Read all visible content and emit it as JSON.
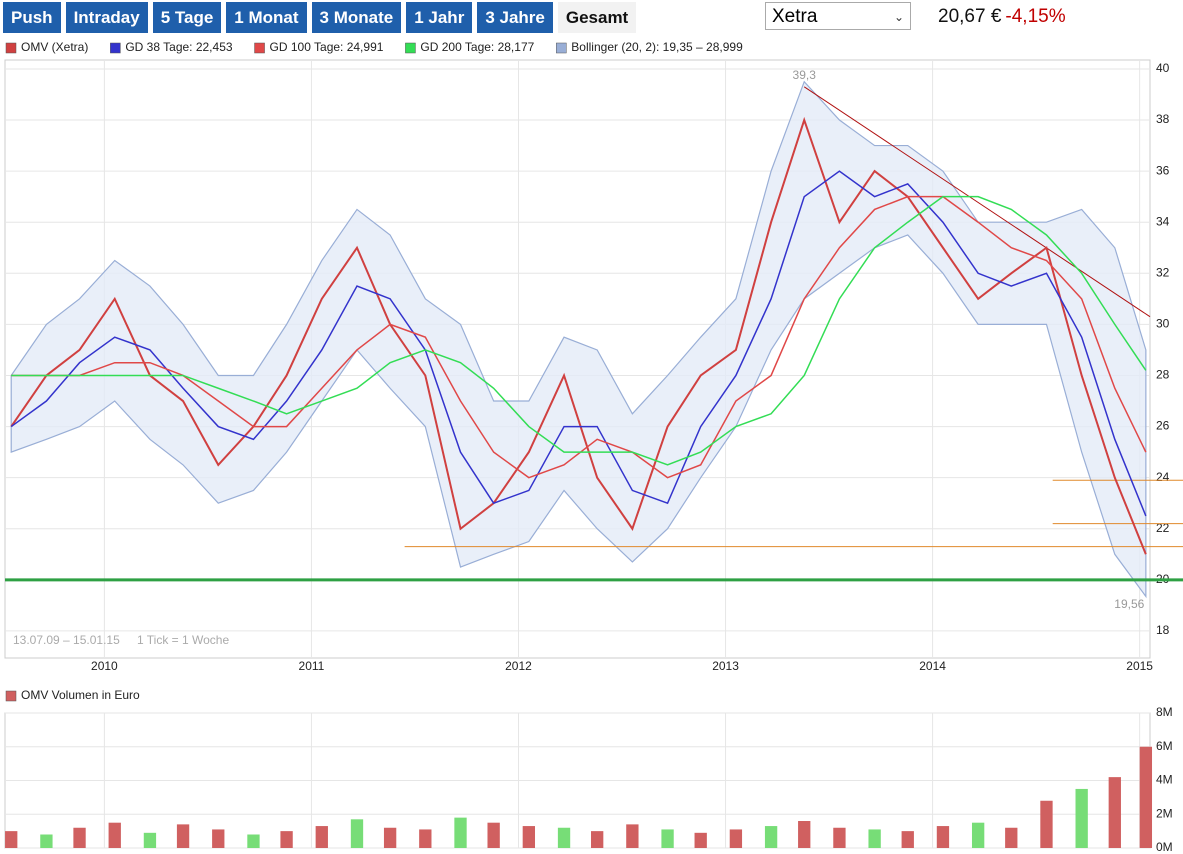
{
  "header": {
    "tabs": [
      "Push",
      "Intraday",
      "5 Tage",
      "1 Monat",
      "3 Monate",
      "1 Jahr",
      "3 Jahre",
      "Gesamt"
    ],
    "selected_tab": 7,
    "exchange": "Xetra",
    "price": "20,67 €",
    "change": "-4,15%"
  },
  "chart_data": [
    {
      "type": "line",
      "legend": true,
      "x": [
        2009.55,
        2009.72,
        2009.88,
        2010.05,
        2010.22,
        2010.38,
        2010.55,
        2010.72,
        2010.88,
        2011.05,
        2011.22,
        2011.38,
        2011.55,
        2011.72,
        2011.88,
        2012.05,
        2012.22,
        2012.38,
        2012.55,
        2012.72,
        2012.88,
        2013.05,
        2013.22,
        2013.38,
        2013.55,
        2013.72,
        2013.88,
        2014.05,
        2014.22,
        2014.38,
        2014.55,
        2014.72,
        2014.88,
        2015.03
      ],
      "series": [
        {
          "name": "OMV (Xetra)",
          "color": "#d04040",
          "values": [
            26,
            28,
            29,
            31,
            28,
            27,
            24.5,
            26,
            28,
            31,
            33,
            30,
            28,
            22,
            23,
            25,
            28,
            24,
            22,
            26,
            28,
            29,
            34,
            38,
            34,
            36,
            35,
            33,
            31,
            32,
            33,
            28,
            24,
            21
          ]
        },
        {
          "name": "GD 38 Tage: 22,453",
          "color": "#3333cc",
          "values": [
            26,
            27,
            28.5,
            29.5,
            29,
            27.5,
            26,
            25.5,
            27,
            29,
            31.5,
            31,
            29,
            25,
            23,
            23.5,
            26,
            26,
            23.5,
            23,
            26,
            28,
            31,
            35,
            36,
            35,
            35.5,
            34,
            32,
            31.5,
            32,
            29.5,
            25.5,
            22.5
          ]
        },
        {
          "name": "GD 100 Tage: 24,991",
          "color": "#e04848",
          "values": [
            28,
            28,
            28,
            28.5,
            28.5,
            28,
            27,
            26,
            26,
            27.5,
            29,
            30,
            29.5,
            27,
            25,
            24,
            24.5,
            25.5,
            25,
            24,
            24.5,
            27,
            28,
            31,
            33,
            34.5,
            35,
            35,
            34,
            33,
            32.5,
            31,
            27.5,
            25
          ]
        },
        {
          "name": "GD 200 Tage: 28,177",
          "color": "#33dd55",
          "values": [
            28,
            28,
            28,
            28,
            28,
            28,
            27.5,
            27,
            26.5,
            27,
            27.5,
            28.5,
            29,
            28.5,
            27.5,
            26,
            25,
            25,
            25,
            24.5,
            25,
            26,
            26.5,
            28,
            31,
            33,
            34,
            35,
            35,
            34.5,
            33.5,
            32,
            30,
            28.2
          ]
        }
      ],
      "band": {
        "name": "Bollinger (20, 2): 19,35 – 28,999",
        "color": "#99aed6",
        "upper": [
          28,
          30,
          31,
          32.5,
          31.5,
          30,
          28,
          28,
          30,
          32.5,
          34.5,
          33.5,
          31,
          30,
          27,
          27,
          29.5,
          29,
          26.5,
          28,
          29.5,
          31,
          36,
          39.5,
          38,
          37,
          37,
          36,
          34,
          34,
          34,
          34.5,
          33,
          29
        ],
        "lower": [
          25,
          25.5,
          26,
          27,
          25.5,
          24.5,
          23,
          23.5,
          25,
          27,
          29,
          27.5,
          26,
          20.5,
          21,
          21.5,
          23.5,
          22,
          20.7,
          22,
          24,
          26,
          29,
          31,
          32,
          33,
          33.5,
          32,
          30,
          30,
          30,
          25,
          21,
          19.35
        ]
      },
      "hlines": [
        {
          "value": 20,
          "color": "#2ea043",
          "from": 2009.52
        },
        {
          "value": 21.3,
          "color": "#e08a2c",
          "from": 2011.45
        },
        {
          "value": 22.2,
          "color": "#e08a2c",
          "from": 2014.58
        },
        {
          "value": 23.9,
          "color": "#e08a2c",
          "from": 2014.58
        }
      ],
      "trendlines": [
        {
          "x": [
            2013.38,
            2015.05
          ],
          "y": [
            39.3,
            30.3
          ],
          "color": "#b01010"
        }
      ],
      "annotations": [
        {
          "label": "39,3",
          "value": 39.3,
          "x": 2013.38
        },
        {
          "label": "19,56",
          "value": 19.56,
          "x": 2014.95
        }
      ],
      "notes": [
        "13.07.09 – 15.01.15",
        "1 Tick = 1 Woche"
      ],
      "xlim": [
        2009.52,
        2015.05
      ],
      "xticks": [
        2010,
        2011,
        2012,
        2013,
        2014,
        2015
      ],
      "ylim": [
        16.94,
        40.35
      ],
      "yticks": [
        18,
        20,
        22,
        24,
        26,
        28,
        30,
        32,
        34,
        36,
        38,
        40
      ],
      "grid": true
    },
    {
      "type": "bar",
      "legend": true,
      "x": [
        2009.55,
        2009.72,
        2009.88,
        2010.05,
        2010.22,
        2010.38,
        2010.55,
        2010.72,
        2010.88,
        2011.05,
        2011.22,
        2011.38,
        2011.55,
        2011.72,
        2011.88,
        2012.05,
        2012.22,
        2012.38,
        2012.55,
        2012.72,
        2012.88,
        2013.05,
        2013.22,
        2013.38,
        2013.55,
        2013.72,
        2013.88,
        2014.05,
        2014.22,
        2014.38,
        2014.55,
        2014.72,
        2014.88,
        2015.03
      ],
      "series": [
        {
          "name": "OMV Volumen in Euro",
          "color": "#d06060",
          "values": [
            1000000,
            800000,
            1200000,
            1500000,
            900000,
            1400000,
            1100000,
            800000,
            1000000,
            1300000,
            1700000,
            1200000,
            1100000,
            1800000,
            1500000,
            1300000,
            1200000,
            1000000,
            1400000,
            1100000,
            900000,
            1100000,
            1300000,
            1600000,
            1200000,
            1100000,
            1000000,
            1300000,
            1500000,
            1200000,
            2800000,
            3500000,
            4200000,
            6000000
          ]
        }
      ],
      "xlim": [
        2009.52,
        2015.05
      ],
      "ylim": [
        0,
        8000000
      ],
      "yticks": [
        {
          "value": 0,
          "label": "0M"
        },
        {
          "value": 2000000,
          "label": "2M"
        },
        {
          "value": 4000000,
          "label": "4M"
        },
        {
          "value": 6000000,
          "label": "6M"
        },
        {
          "value": 8000000,
          "label": "8M"
        }
      ],
      "grid": true
    }
  ]
}
